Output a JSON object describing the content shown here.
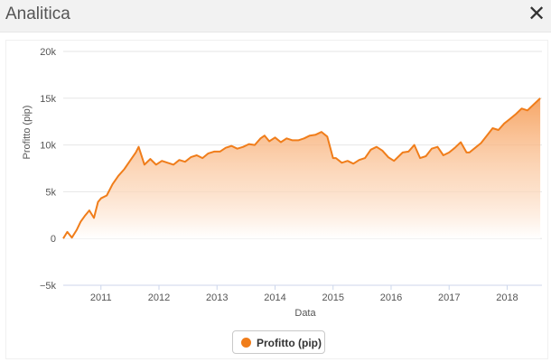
{
  "window": {
    "title": "Analitica",
    "close_icon": "close-icon"
  },
  "colors": {
    "line": "#f07d1a",
    "fill_top": "#f6a15e",
    "grid": "#e6e6e6",
    "axis_text": "#555555"
  },
  "legend": {
    "label": "Profitto (pip)",
    "color": "#f07d1a"
  },
  "chart_data": {
    "type": "area",
    "title": "",
    "xlabel": "Data",
    "ylabel": "Profitto (pip)",
    "ylim": [
      -5000,
      20000
    ],
    "xlim": [
      2010.35,
      2018.6
    ],
    "y_ticks": [
      -5000,
      0,
      5000,
      10000,
      15000,
      20000
    ],
    "y_tick_labels": [
      "−5k",
      "0",
      "5k",
      "10k",
      "15k",
      "20k"
    ],
    "x_ticks": [
      2011,
      2012,
      2013,
      2014,
      2015,
      2016,
      2017,
      2018
    ],
    "x_tick_labels": [
      "2011",
      "2012",
      "2013",
      "2014",
      "2015",
      "2016",
      "2017",
      "2018"
    ],
    "grid": true,
    "legend_position": "bottom-center",
    "series": [
      {
        "name": "Profitto (pip)",
        "x": [
          2010.35,
          2010.42,
          2010.5,
          2010.58,
          2010.65,
          2010.72,
          2010.8,
          2010.88,
          2010.95,
          2011.0,
          2011.1,
          2011.2,
          2011.3,
          2011.4,
          2011.5,
          2011.6,
          2011.65,
          2011.75,
          2011.85,
          2011.95,
          2012.05,
          2012.15,
          2012.25,
          2012.35,
          2012.45,
          2012.55,
          2012.65,
          2012.75,
          2012.85,
          2012.95,
          2013.05,
          2013.15,
          2013.25,
          2013.35,
          2013.45,
          2013.55,
          2013.65,
          2013.75,
          2013.82,
          2013.9,
          2014.0,
          2014.1,
          2014.2,
          2014.3,
          2014.4,
          2014.5,
          2014.6,
          2014.7,
          2014.8,
          2014.9,
          2015.0,
          2015.05,
          2015.15,
          2015.25,
          2015.35,
          2015.45,
          2015.55,
          2015.65,
          2015.75,
          2015.85,
          2015.95,
          2016.05,
          2016.15,
          2016.2,
          2016.3,
          2016.4,
          2016.5,
          2016.6,
          2016.7,
          2016.8,
          2016.9,
          2017.0,
          2017.1,
          2017.2,
          2017.3,
          2017.35,
          2017.45,
          2017.55,
          2017.65,
          2017.75,
          2017.85,
          2017.95,
          2018.05,
          2018.15,
          2018.25,
          2018.35,
          2018.45,
          2018.52,
          2018.57
        ],
        "y": [
          0,
          700,
          100,
          900,
          1800,
          2400,
          3000,
          2200,
          3900,
          4300,
          4600,
          5800,
          6700,
          7400,
          8300,
          9200,
          9800,
          7900,
          8500,
          7900,
          8300,
          8100,
          7900,
          8400,
          8200,
          8700,
          8900,
          8600,
          9100,
          9300,
          9300,
          9700,
          9900,
          9600,
          9800,
          10100,
          10000,
          10700,
          11000,
          10400,
          10800,
          10300,
          10700,
          10500,
          10500,
          10700,
          11000,
          11100,
          11400,
          10900,
          8600,
          8600,
          8100,
          8300,
          8000,
          8400,
          8600,
          9500,
          9800,
          9400,
          8700,
          8300,
          8900,
          9200,
          9300,
          10000,
          8600,
          8800,
          9600,
          9800,
          8900,
          9200,
          9700,
          10300,
          9200,
          9200,
          9700,
          10200,
          11000,
          11800,
          11600,
          12300,
          12800,
          13300,
          13900,
          13700,
          14300,
          14700,
          15000
        ]
      }
    ]
  }
}
